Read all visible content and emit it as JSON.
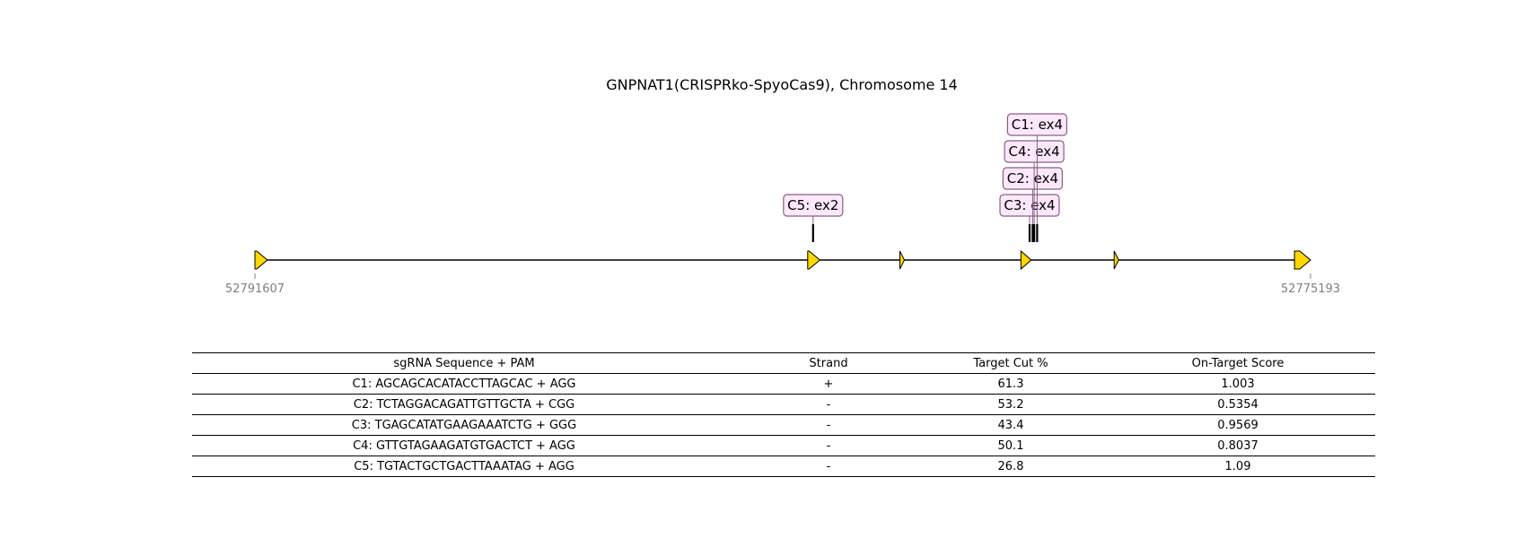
{
  "title": "GNPNAT1(CRISPRko-SpyoCas9), Chromosome 14",
  "gene": {
    "start_coord": 52791607,
    "end_coord": 52775193,
    "start_label": "52791607",
    "end_label": "52775193",
    "exon_color": "#ffd700",
    "exons": [
      {
        "start": 52791607,
        "end": 52791413
      },
      {
        "start": 52783012,
        "end": 52782822
      },
      {
        "start": 52781579,
        "end": 52781509
      },
      {
        "start": 52779697,
        "end": 52779537
      },
      {
        "start": 52778247,
        "end": 52778177
      },
      {
        "start": 52775443,
        "end": 52775193
      }
    ]
  },
  "guides": [
    {
      "id": "C1",
      "label": "C1: ex4",
      "position": 52779444
    },
    {
      "id": "C4",
      "label": "C4: ex4",
      "position": 52779491
    },
    {
      "id": "C2",
      "label": "C2: ex4",
      "position": 52779514
    },
    {
      "id": "C3",
      "label": "C3: ex4",
      "position": 52779562
    },
    {
      "id": "C5",
      "label": "C5: ex2",
      "position": 52782928
    }
  ],
  "guide_label_color": "#fde7fb",
  "table": {
    "headers": [
      "sgRNA Sequence + PAM",
      "Strand",
      "Target Cut %",
      "On-Target Score"
    ],
    "rows": [
      [
        "C1: AGCAGCACATACCTTAGCAC + AGG",
        "+",
        "61.3",
        "1.003"
      ],
      [
        "C2: TCTAGGACAGATTGTTGCTA + CGG",
        "-",
        "53.2",
        "0.5354"
      ],
      [
        "C3: TGAGCATATGAAGAAATCTG + GGG",
        "-",
        "43.4",
        "0.9569"
      ],
      [
        "C4: GTTGTAGAAGATGTGACTCT + AGG",
        "-",
        "50.1",
        "0.8037"
      ],
      [
        "C5: TGTACTGCTGACTTAAATAG + AGG",
        "-",
        "26.8",
        "1.09"
      ]
    ]
  }
}
